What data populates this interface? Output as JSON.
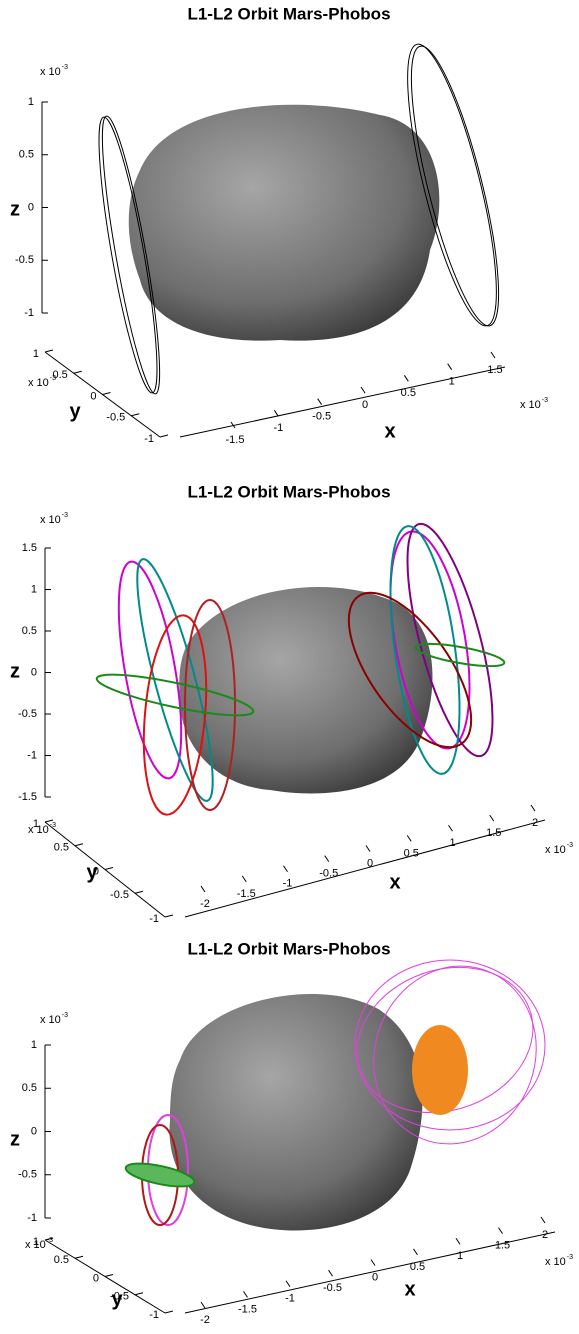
{
  "chart_data": [
    {
      "type": "orbit3d",
      "title": "L1-L2 Orbit Mars-Phobos",
      "xlabel": "x",
      "ylabel": "y",
      "zlabel": "z",
      "scale_base": "x 10",
      "scale_exponent": "-3",
      "xlim": [
        -1.5,
        1.5
      ],
      "xticks": [
        -1.5,
        -1,
        -0.5,
        0,
        0.5,
        1,
        1.5
      ],
      "ylim": [
        -1,
        1
      ],
      "yticks": [
        -1,
        -0.5,
        0,
        0.5,
        1
      ],
      "zlim": [
        -1,
        1
      ],
      "zticks": [
        -1,
        -0.5,
        0,
        0.5,
        1
      ]
    },
    {
      "type": "orbit3d",
      "title": "L1-L2 Orbit Mars-Phobos",
      "xlabel": "x",
      "ylabel": "y",
      "zlabel": "z",
      "scale_base": "x 10",
      "scale_exponent": "-3",
      "xlim": [
        -2,
        2
      ],
      "xticks": [
        -2,
        -1.5,
        -1,
        -0.5,
        0,
        0.5,
        1,
        1.5,
        2
      ],
      "ylim": [
        -1,
        1
      ],
      "yticks": [
        -1,
        -0.5,
        0,
        0.5,
        1
      ],
      "zlim": [
        -1.5,
        1.5
      ],
      "zticks": [
        -1.5,
        -1,
        -0.5,
        0,
        0.5,
        1,
        1.5
      ]
    },
    {
      "type": "orbit3d",
      "title": "L1-L2 Orbit Mars-Phobos",
      "xlabel": "x",
      "ylabel": "y",
      "zlabel": "z",
      "scale_base": "x 10",
      "scale_exponent": "-3",
      "xlim": [
        -2,
        2
      ],
      "xticks": [
        -2,
        -1.5,
        -1,
        -0.5,
        0,
        0.5,
        1,
        1.5,
        2
      ],
      "ylim": [
        -1,
        1
      ],
      "yticks": [
        -1,
        -0.5,
        0,
        0.5,
        1
      ],
      "zlim": [
        -1,
        1
      ],
      "zticks": [
        -1,
        -0.5,
        0,
        0.5,
        1
      ]
    }
  ]
}
